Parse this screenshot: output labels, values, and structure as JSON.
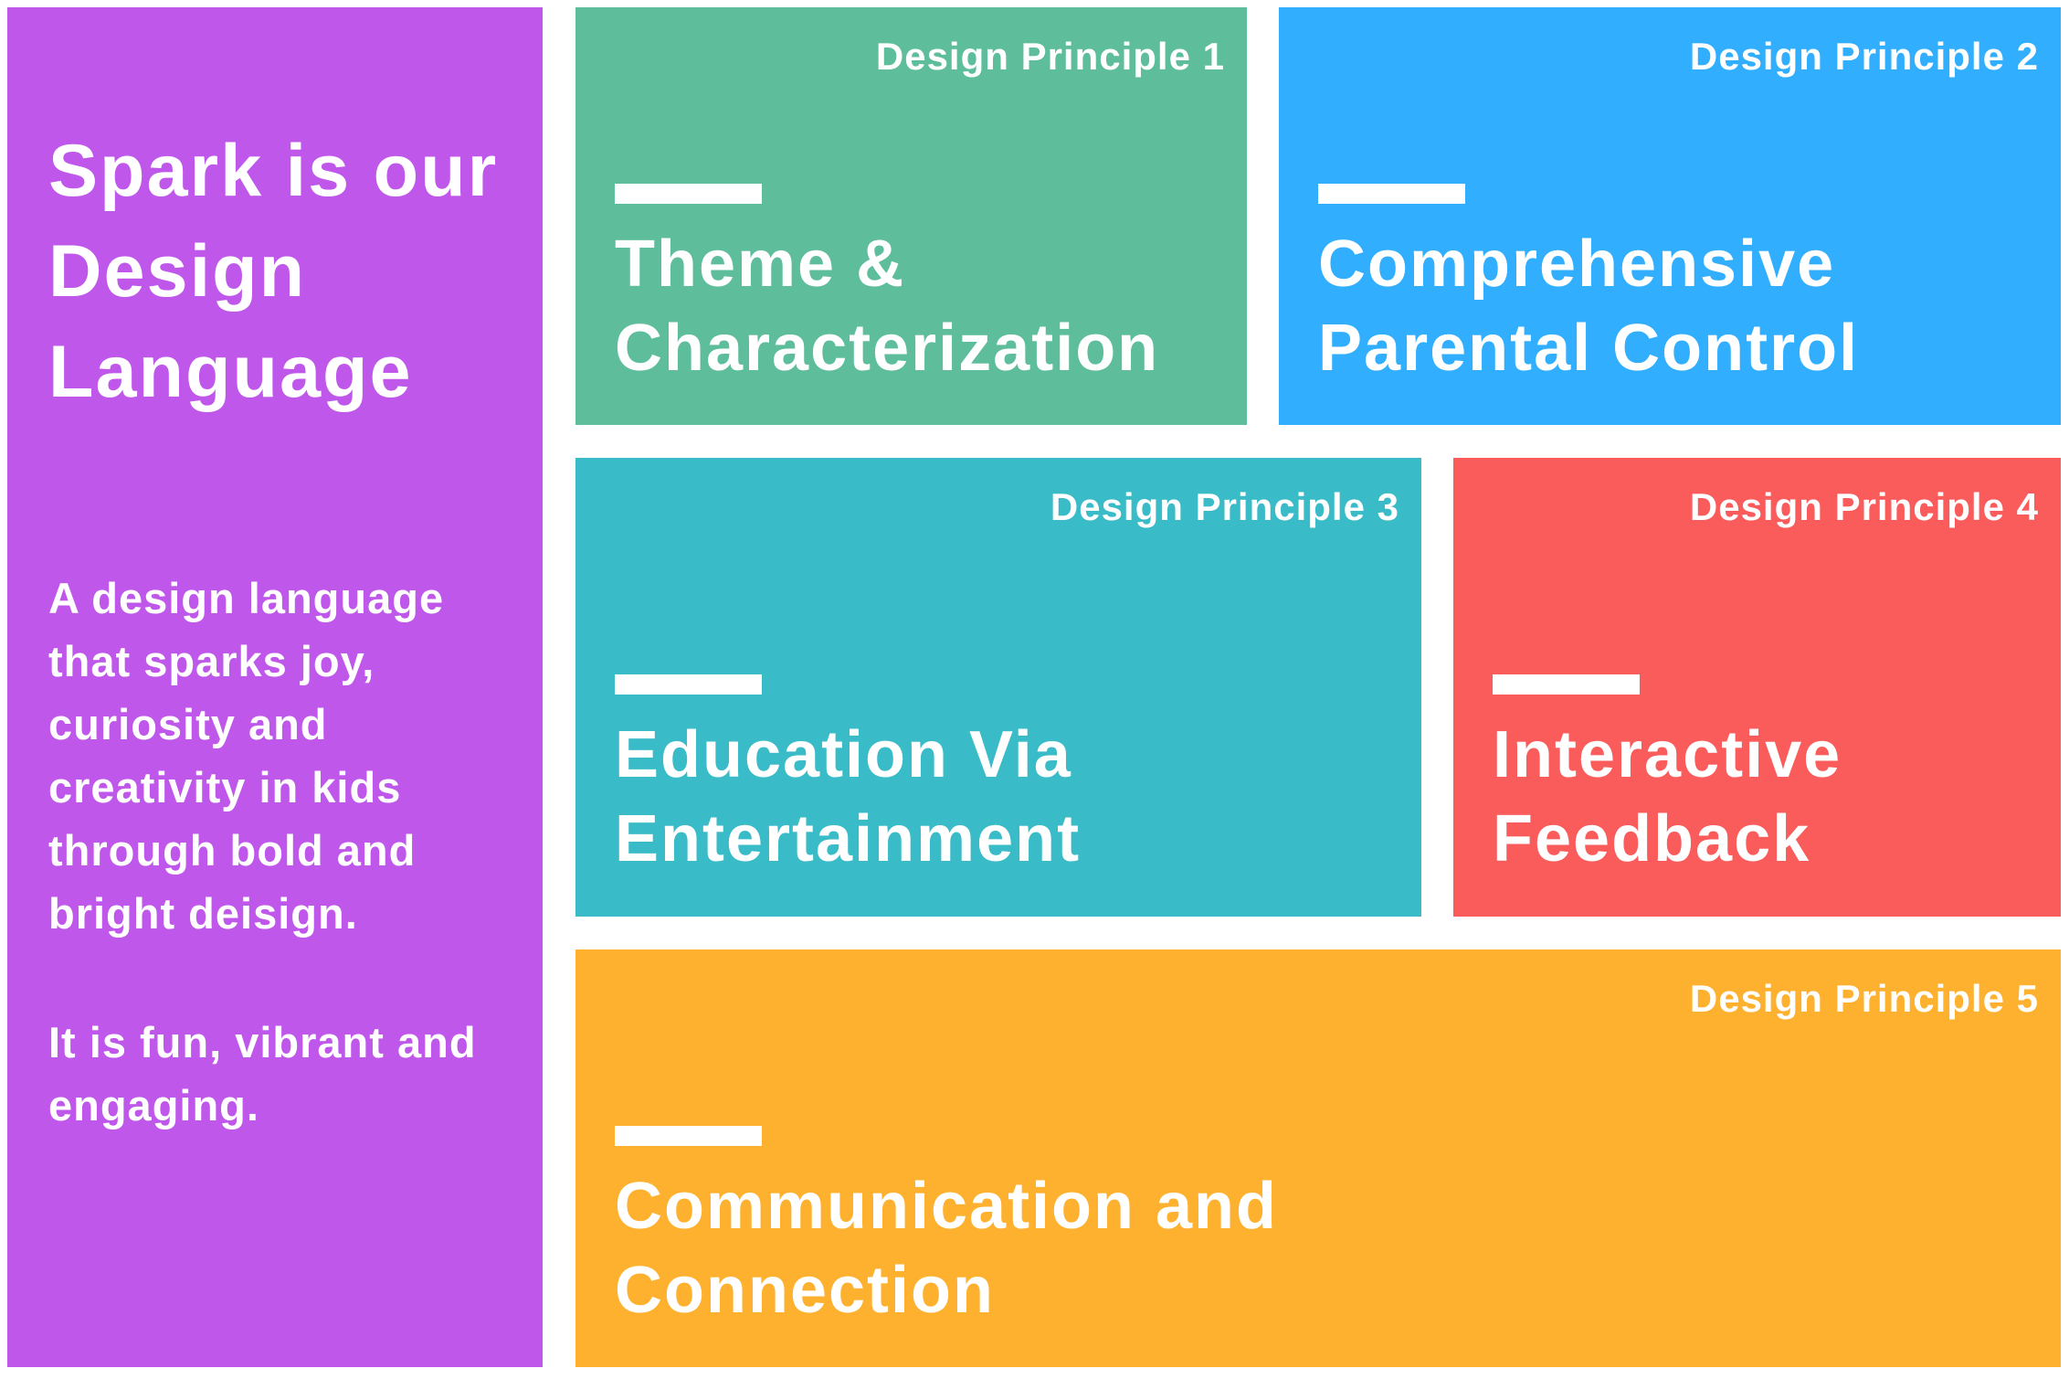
{
  "intro": {
    "title": "Spark is our Design Language",
    "description": "A design language that sparks joy, curiosity and creativity in kids through bold and bright deisign.",
    "tagline": "It is fun, vibrant and engaging.",
    "color": "#BF58EA"
  },
  "principles": [
    {
      "label": "Design Principle 1",
      "title": "Theme &\nCharacterization",
      "color": "#5EBE9C"
    },
    {
      "label": "Design Principle 2",
      "title": "Comprehensive\nParental Control",
      "color": "#31AFFE"
    },
    {
      "label": "Design Principle 3",
      "title": "Education Via\nEntertainment",
      "color": "#3ABBC8"
    },
    {
      "label": "Design Principle 4",
      "title": "Interactive\nFeedback",
      "color": "#FA5C5C"
    },
    {
      "label": "Design Principle 5",
      "title": "Communication and\nConnection",
      "color": "#FEB12E"
    }
  ]
}
